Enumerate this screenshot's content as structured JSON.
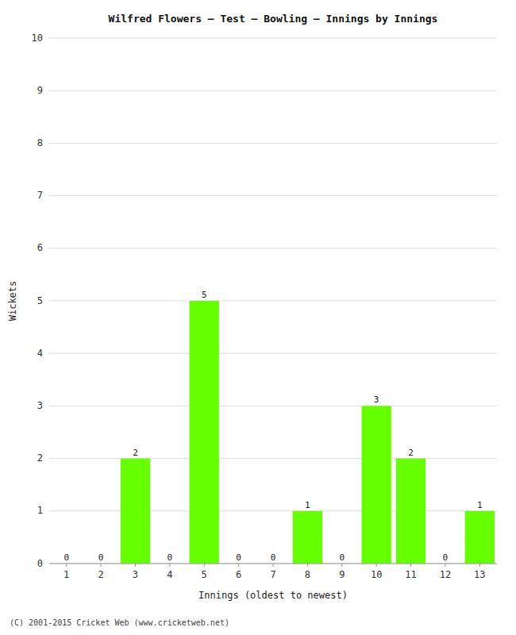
{
  "chart_data": {
    "type": "bar",
    "title": "Wilfred Flowers – Test – Bowling – Innings by Innings",
    "xlabel": "Innings (oldest to newest)",
    "ylabel": "Wickets",
    "categories": [
      1,
      2,
      3,
      4,
      5,
      6,
      7,
      8,
      9,
      10,
      11,
      12,
      13
    ],
    "values": [
      0,
      0,
      2,
      0,
      5,
      0,
      0,
      1,
      0,
      3,
      2,
      0,
      1
    ],
    "color": "#66ff00",
    "ylim": [
      0,
      10
    ],
    "yticks": [
      0,
      1,
      2,
      3,
      4,
      5,
      6,
      7,
      8,
      9,
      10
    ],
    "grid": true,
    "data_labels": true,
    "footer": "(C) 2001-2015 Cricket Web (www.cricketweb.net)"
  }
}
